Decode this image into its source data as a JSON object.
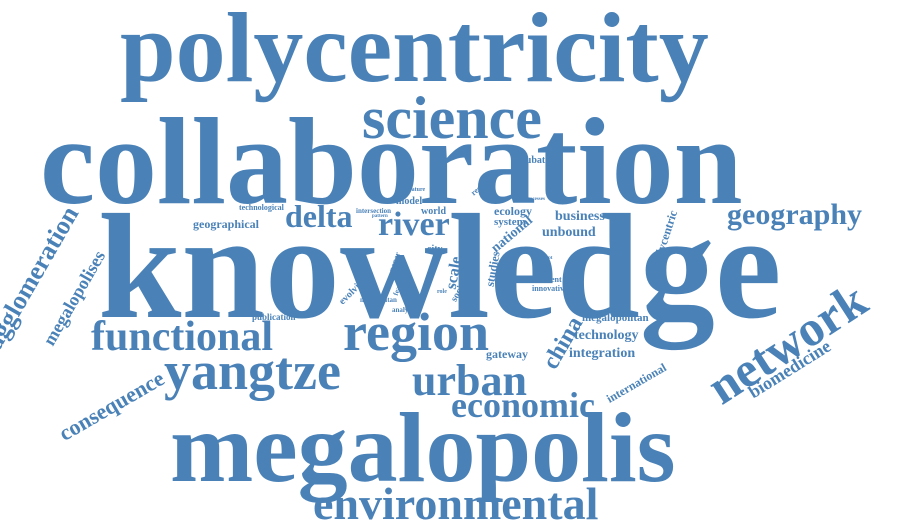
{
  "colors": {
    "word": "#4a82b8",
    "background": "#ffffff"
  },
  "words": [
    {
      "text": "polycentricity"
    },
    {
      "text": "science"
    },
    {
      "text": "collaboration"
    },
    {
      "text": "knowledge"
    },
    {
      "text": "megalopolis"
    },
    {
      "text": "environmental"
    },
    {
      "text": "functional"
    },
    {
      "text": "yangtze"
    },
    {
      "text": "urban"
    },
    {
      "text": "region"
    },
    {
      "text": "economic"
    },
    {
      "text": "network"
    },
    {
      "text": "geography"
    },
    {
      "text": "delta"
    },
    {
      "text": "river"
    },
    {
      "text": "agglomeration"
    },
    {
      "text": "megalopolises"
    },
    {
      "text": "consequence"
    },
    {
      "text": "biomedicine"
    },
    {
      "text": "china"
    },
    {
      "text": "technology"
    },
    {
      "text": "integration"
    },
    {
      "text": "megalopolitan"
    },
    {
      "text": "gateway"
    },
    {
      "text": "international"
    },
    {
      "text": "business"
    },
    {
      "text": "unbound"
    },
    {
      "text": "ecology"
    },
    {
      "text": "system"
    },
    {
      "text": "national"
    },
    {
      "text": "studies"
    },
    {
      "text": "incubator"
    },
    {
      "text": "geographical"
    },
    {
      "text": "technological"
    },
    {
      "text": "polycentric"
    },
    {
      "text": "publication"
    },
    {
      "text": "world"
    },
    {
      "text": "model"
    },
    {
      "text": "intersection"
    },
    {
      "text": "different"
    },
    {
      "text": "innovative"
    },
    {
      "text": "city"
    },
    {
      "text": "scale"
    },
    {
      "text": "social"
    },
    {
      "text": "evolving"
    },
    {
      "text": "megapolitan"
    },
    {
      "text": "analysis"
    },
    {
      "text": "pattern"
    },
    {
      "text": "literature"
    },
    {
      "text": "research"
    },
    {
      "text": "processes"
    },
    {
      "text": "concept"
    },
    {
      "text": "role"
    },
    {
      "text": "paper"
    },
    {
      "text": "feature"
    },
    {
      "text": "linkage"
    }
  ]
}
